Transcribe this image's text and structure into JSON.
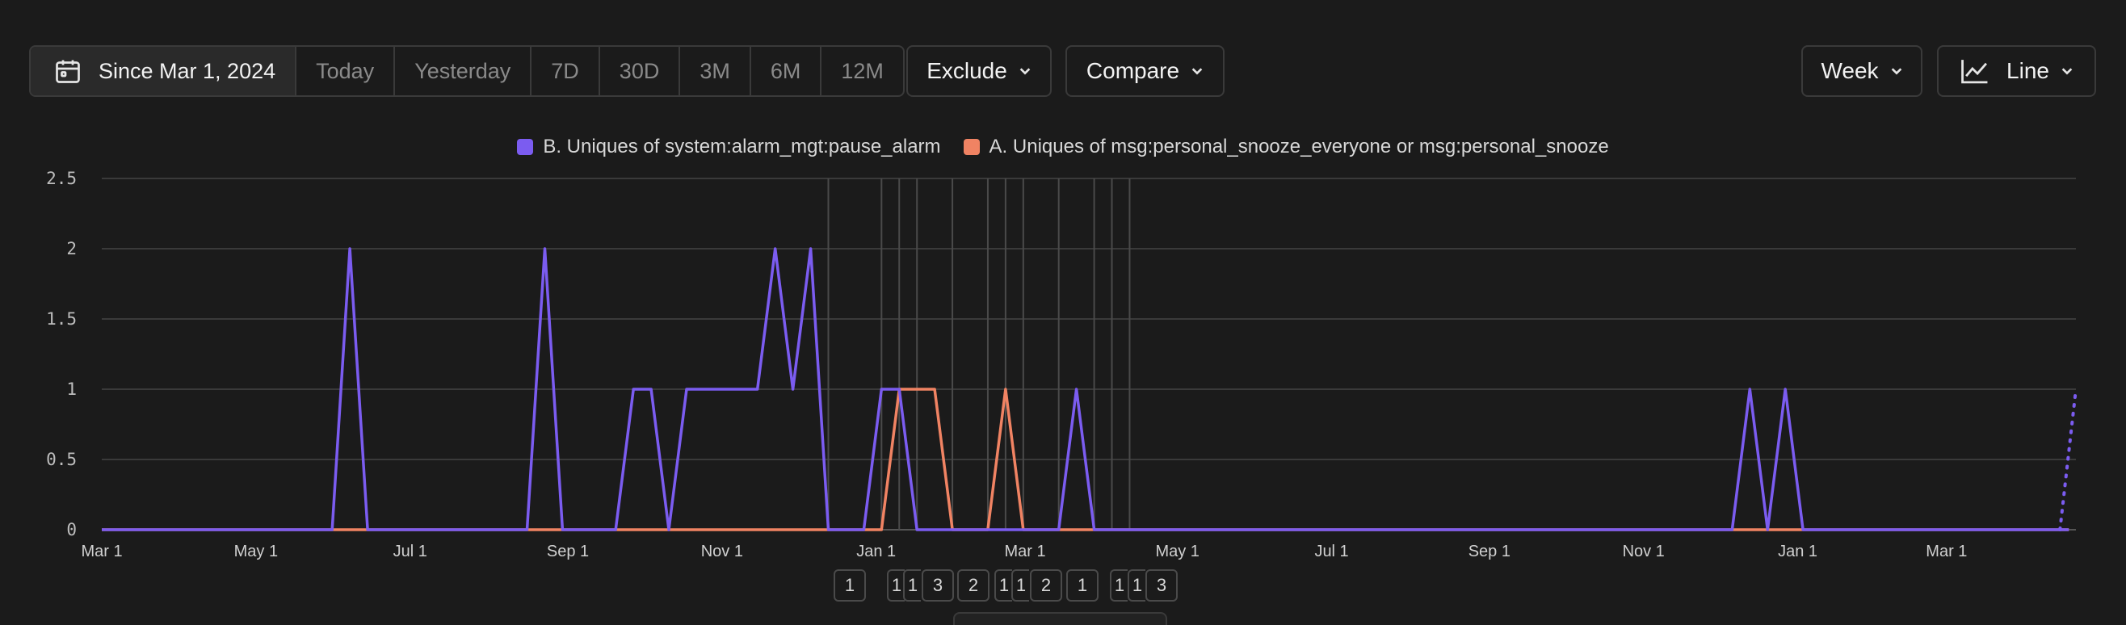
{
  "toolbar": {
    "date_range": {
      "active_label": "Since Mar 1, 2024",
      "icon": "calendar-icon",
      "presets": [
        "Today",
        "Yesterday",
        "7D",
        "30D",
        "3M",
        "6M",
        "12M"
      ]
    },
    "exclude_label": "Exclude",
    "compare_label": "Compare",
    "interval_label": "Week",
    "chart_type_label": "Line"
  },
  "legend": [
    {
      "name": "B. Uniques of system:alarm_mgt:pause_alarm",
      "color": "#7b5cf0"
    },
    {
      "name": "A. Uniques of msg:personal_snooze_everyone or msg:personal_snooze",
      "color": "#f08363"
    }
  ],
  "markers": [
    "1",
    "1",
    "1",
    "3",
    "2",
    "1",
    "1",
    "2",
    "1",
    "1",
    "1",
    "3"
  ],
  "chart_data": {
    "type": "line",
    "title": "",
    "xlabel": "",
    "ylabel": "",
    "ylim": [
      0,
      2.5
    ],
    "y_ticks": [
      "0",
      "0.5",
      "1",
      "1.5",
      "2",
      "2.5"
    ],
    "x_ticks": [
      "Mar 1",
      "May 1",
      "Jul 1",
      "Sep 1",
      "Nov 1",
      "Jan 1",
      "Mar 1",
      "May 1",
      "Jul 1",
      "Sep 1",
      "Nov 1",
      "Jan 1",
      "Mar 1"
    ],
    "x_tick_weeks": [
      0,
      8.7,
      17.4,
      26.3,
      35,
      43.7,
      52.1,
      60.7,
      69.4,
      78.3,
      87,
      95.7,
      104.1
    ],
    "x_week_max": 111.4,
    "grid": true,
    "series": [
      {
        "name": "B. Uniques of system:alarm_mgt:pause_alarm",
        "color": "#7b5cf0",
        "points": [
          [
            0,
            0
          ],
          [
            13,
            0
          ],
          [
            14,
            2
          ],
          [
            15,
            0
          ],
          [
            24,
            0
          ],
          [
            25,
            2
          ],
          [
            26,
            0
          ],
          [
            29,
            0
          ],
          [
            30,
            1
          ],
          [
            31,
            1
          ],
          [
            32,
            0
          ],
          [
            33,
            1
          ],
          [
            37,
            1
          ],
          [
            38,
            2
          ],
          [
            39,
            1
          ],
          [
            40,
            2
          ],
          [
            41,
            0
          ],
          [
            43,
            0
          ],
          [
            44,
            1
          ],
          [
            45,
            1
          ],
          [
            46,
            0
          ],
          [
            54,
            0
          ],
          [
            55,
            1
          ],
          [
            56,
            0
          ],
          [
            92,
            0
          ],
          [
            93,
            1
          ],
          [
            94,
            0
          ],
          [
            95,
            1
          ],
          [
            96,
            0
          ],
          [
            111,
            0
          ]
        ]
      },
      {
        "name": "A. Uniques of msg:personal_snooze_everyone or msg:personal_snooze",
        "color": "#f08363",
        "points": [
          [
            0,
            0
          ],
          [
            44,
            0
          ],
          [
            45,
            1
          ],
          [
            47,
            1
          ],
          [
            48,
            0
          ],
          [
            50,
            0
          ],
          [
            51,
            1
          ],
          [
            52,
            0
          ],
          [
            111,
            0
          ]
        ]
      }
    ],
    "partial_tail": {
      "series": 0,
      "from": [
        110.5,
        0
      ],
      "to": [
        111.4,
        1
      ]
    }
  }
}
